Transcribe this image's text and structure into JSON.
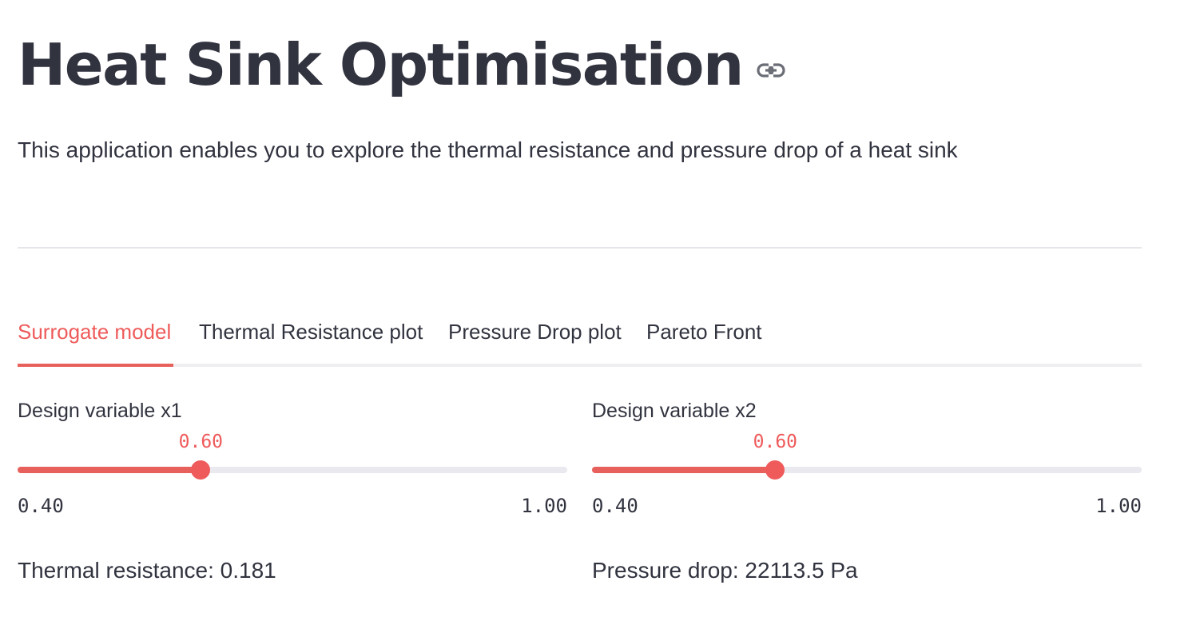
{
  "header": {
    "title": "Heat Sink Optimisation",
    "anchor_icon": "link-icon",
    "subtitle": "This application enables you to explore the thermal resistance and pressure drop of a heat sink"
  },
  "tabs": [
    {
      "label": "Surrogate model",
      "active": true
    },
    {
      "label": "Thermal Resistance plot",
      "active": false
    },
    {
      "label": "Pressure Drop plot",
      "active": false
    },
    {
      "label": "Pareto Front",
      "active": false
    }
  ],
  "sliders": [
    {
      "label": "Design variable x1",
      "value": 0.6,
      "value_text": "0.60",
      "min": 0.4,
      "max": 1.0,
      "min_text": "0.40",
      "max_text": "1.00"
    },
    {
      "label": "Design variable x2",
      "value": 0.6,
      "value_text": "0.60",
      "min": 0.4,
      "max": 1.0,
      "min_text": "0.40",
      "max_text": "1.00"
    }
  ],
  "results": {
    "thermal_resistance": "Thermal resistance: 0.181",
    "pressure_drop": "Pressure drop: 22113.5 Pa"
  },
  "colors": {
    "accent": "#ef5b5b",
    "text": "#31333f",
    "track": "#e9e9ef"
  }
}
